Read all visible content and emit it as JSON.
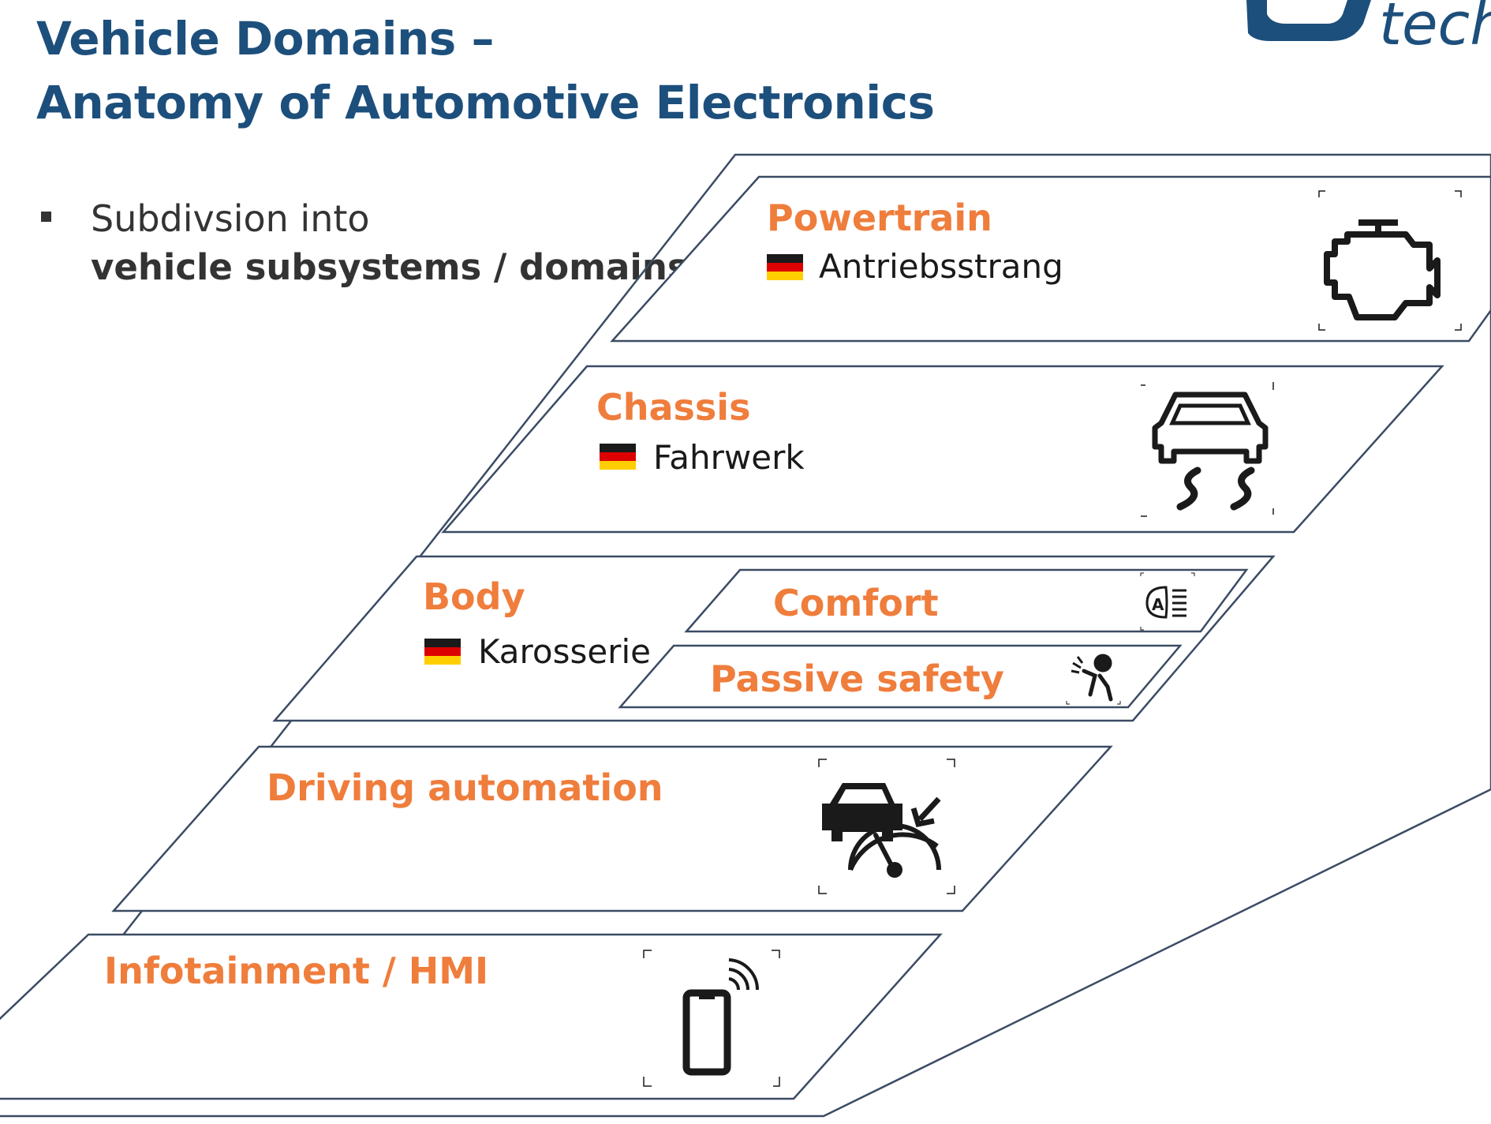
{
  "title": {
    "line1": "Vehicle Domains –",
    "line2": "Anatomy of Automotive Electronics"
  },
  "logo": {
    "text": "tech"
  },
  "bullet": {
    "line1": "Subdivsion into",
    "line2": "vehicle subsystems / domains"
  },
  "colors": {
    "title": "#1d4f7c",
    "domain_label": "#ef7d3c",
    "outline": "#3b4b64",
    "text": "#333333"
  },
  "domains": [
    {
      "label": "Powertrain",
      "german": "Antriebsstrang",
      "icon": "engine-icon"
    },
    {
      "label": "Chassis",
      "german": "Fahrwerk",
      "icon": "skid-car-icon"
    },
    {
      "label": "Body",
      "german": "Karosserie",
      "subdomains": [
        {
          "label": "Comfort",
          "icon": "auto-headlight-icon"
        },
        {
          "label": "Passive safety",
          "icon": "airbag-icon"
        }
      ]
    },
    {
      "label": "Driving automation",
      "icon": "car-speedometer-icon"
    },
    {
      "label": "Infotainment / HMI",
      "icon": "smartphone-wireless-icon"
    }
  ]
}
